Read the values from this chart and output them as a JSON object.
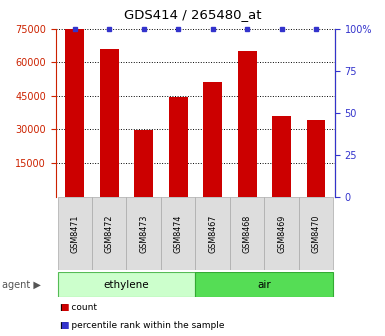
{
  "title": "GDS414 / 265480_at",
  "samples": [
    "GSM8471",
    "GSM8472",
    "GSM8473",
    "GSM8474",
    "GSM8467",
    "GSM8468",
    "GSM8469",
    "GSM8470"
  ],
  "counts": [
    75000,
    66000,
    29500,
    44500,
    51000,
    65000,
    36000,
    34000
  ],
  "percentiles": [
    100,
    100,
    100,
    100,
    100,
    100,
    100,
    100
  ],
  "bar_color": "#cc0000",
  "dot_color": "#3333cc",
  "ylim_left": [
    0,
    75000
  ],
  "yticks_left": [
    15000,
    30000,
    45000,
    60000,
    75000
  ],
  "ylim_right": [
    0,
    100
  ],
  "yticks_right": [
    0,
    25,
    50,
    75,
    100
  ],
  "groups": [
    {
      "label": "ethylene",
      "indices": [
        0,
        1,
        2,
        3
      ],
      "facecolor": "#ccffcc",
      "edgecolor": "#55bb55"
    },
    {
      "label": "air",
      "indices": [
        4,
        5,
        6,
        7
      ],
      "facecolor": "#55dd55",
      "edgecolor": "#33aa33"
    }
  ],
  "agent_label": "agent",
  "legend_items": [
    {
      "label": "count",
      "color": "#cc0000"
    },
    {
      "label": "percentile rank within the sample",
      "color": "#3333cc"
    }
  ],
  "tick_color_left": "#cc2200",
  "tick_color_right": "#3333cc",
  "sample_box_color": "#dddddd",
  "sample_box_edge": "#aaaaaa"
}
